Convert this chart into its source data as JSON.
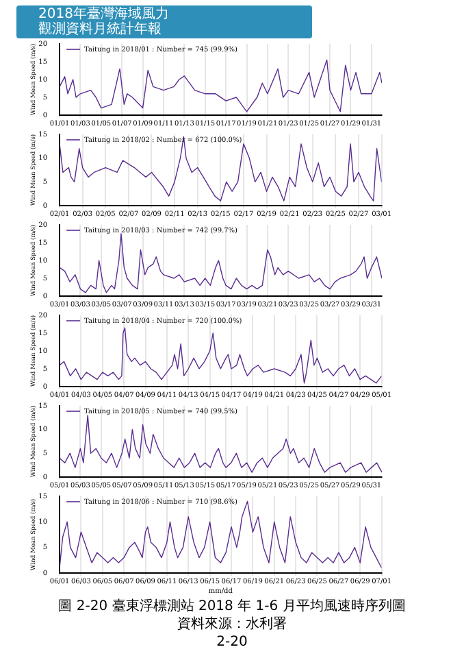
{
  "chart_data": [
    {
      "type": "line",
      "ylabel": "Wind Mean Speed (m/s)",
      "legend": "top left",
      "grid": "x",
      "annotations": [
        "2018年臺灣海域風力",
        "觀測資料月統計年報"
      ],
      "xlim": [
        "2018-01-01",
        "2018-02-01"
      ],
      "ylim": [
        0,
        20
      ],
      "yticks": [
        0,
        5,
        10,
        15,
        20
      ],
      "xticks": [
        {
          "value": "2018-01-01",
          "label": "01/01"
        },
        {
          "value": "2018-01-03",
          "label": "01/03"
        },
        {
          "value": "2018-01-05",
          "label": "01/05"
        },
        {
          "value": "2018-01-07",
          "label": "01/07"
        },
        {
          "value": "2018-01-09",
          "label": "01/09"
        },
        {
          "value": "2018-01-11",
          "label": "01/11"
        },
        {
          "value": "2018-01-13",
          "label": "01/13"
        },
        {
          "value": "2018-01-15",
          "label": "01/15"
        },
        {
          "value": "2018-01-17",
          "label": "01/17"
        },
        {
          "value": "2018-01-19",
          "label": "01/19"
        },
        {
          "value": "2018-01-21",
          "label": "01/21"
        },
        {
          "value": "2018-01-23",
          "label": "01/23"
        },
        {
          "value": "2018-01-25",
          "label": "01/25"
        },
        {
          "value": "2018-01-27",
          "label": "01/27"
        },
        {
          "value": "2018-01-29",
          "label": "01/29"
        },
        {
          "value": "2018-01-31",
          "label": "01/31"
        }
      ],
      "series": [
        {
          "name": "Taitung in 2018/01 : Number = 745 (99.9%)",
          "color": "#5a2d91",
          "x": [
            "2018-01-01",
            "2018-01-01T12:00",
            "2018-01-01T19:00",
            "2018-01-02T07:00",
            "2018-01-02T14:00",
            "2018-01-03",
            "2018-01-04",
            "2018-01-04T12:00",
            "2018-01-05",
            "2018-01-06",
            "2018-01-06T19:00",
            "2018-01-07T05:00",
            "2018-01-07T12:00",
            "2018-01-08",
            "2018-01-09",
            "2018-01-09T12:00",
            "2018-01-10",
            "2018-01-11",
            "2018-01-12",
            "2018-01-12T12:00",
            "2018-01-13",
            "2018-01-14",
            "2018-01-15",
            "2018-01-16",
            "2018-01-17",
            "2018-01-18",
            "2018-01-18T12:00",
            "2018-01-19",
            "2018-01-20",
            "2018-01-20T12:00",
            "2018-01-21",
            "2018-01-22",
            "2018-01-22T12:00",
            "2018-01-23",
            "2018-01-24",
            "2018-01-25",
            "2018-01-25T12:00",
            "2018-01-26T17:00",
            "2018-01-27",
            "2018-01-27T12:00",
            "2018-01-28",
            "2018-01-28T12:00",
            "2018-01-29",
            "2018-01-29T12:00",
            "2018-01-30",
            "2018-01-31",
            "2018-01-31T19:00",
            "2018-02-01"
          ],
          "values": [
            8,
            10.8,
            6,
            10,
            5,
            6,
            7,
            5,
            2,
            3,
            13,
            3,
            6,
            5,
            2,
            12.6,
            8,
            7,
            8,
            10,
            11,
            7,
            6,
            6,
            4,
            5,
            3,
            1,
            5,
            9,
            6,
            13,
            5,
            7,
            6,
            12,
            5,
            15.5,
            7,
            4,
            1,
            14,
            7,
            12,
            6,
            6,
            12,
            9
          ]
        }
      ]
    },
    {
      "type": "line",
      "ylabel": "Wind Mean Speed (m/s)",
      "legend": "top left",
      "grid": "x",
      "xlim": [
        "2018-02-01",
        "2018-03-01"
      ],
      "ylim": [
        0,
        15
      ],
      "yticks": [
        0,
        5,
        10,
        15
      ],
      "xticks": [
        {
          "value": "2018-02-01",
          "label": "02/01"
        },
        {
          "value": "2018-02-03",
          "label": "02/03"
        },
        {
          "value": "2018-02-05",
          "label": "02/05"
        },
        {
          "value": "2018-02-07",
          "label": "02/07"
        },
        {
          "value": "2018-02-09",
          "label": "02/09"
        },
        {
          "value": "2018-02-11",
          "label": "02/11"
        },
        {
          "value": "2018-02-13",
          "label": "02/13"
        },
        {
          "value": "2018-02-15",
          "label": "02/15"
        },
        {
          "value": "2018-02-17",
          "label": "02/17"
        },
        {
          "value": "2018-02-19",
          "label": "02/19"
        },
        {
          "value": "2018-02-21",
          "label": "02/21"
        },
        {
          "value": "2018-02-23",
          "label": "02/23"
        },
        {
          "value": "2018-02-25",
          "label": "02/25"
        },
        {
          "value": "2018-02-27",
          "label": "02/27"
        },
        {
          "value": "2018-03-01",
          "label": "03/01"
        }
      ],
      "series": [
        {
          "name": "Taitung in 2018/02 : Number = 672 (100.0%)",
          "color": "#5a2d91",
          "x": [
            "2018-02-01",
            "2018-02-01T07:00",
            "2018-02-01T19:00",
            "2018-02-02",
            "2018-02-02T07:00",
            "2018-02-02T17:00",
            "2018-02-03",
            "2018-02-03T12:00",
            "2018-02-04",
            "2018-02-05",
            "2018-02-06",
            "2018-02-06T12:00",
            "2018-02-07T12:00",
            "2018-02-08T12:00",
            "2018-02-09",
            "2018-02-10",
            "2018-02-10T12:00",
            "2018-02-11",
            "2018-02-11T12:00",
            "2018-02-11T19:00",
            "2018-02-12",
            "2018-02-12T12:00",
            "2018-02-13",
            "2018-02-13T12:00",
            "2018-02-14",
            "2018-02-14T12:00",
            "2018-02-15",
            "2018-02-15T12:00",
            "2018-02-16",
            "2018-02-16T12:00",
            "2018-02-17",
            "2018-02-17T12:00",
            "2018-02-18",
            "2018-02-18T12:00",
            "2018-02-19",
            "2018-02-19T12:00",
            "2018-02-20",
            "2018-02-20T12:00",
            "2018-02-21",
            "2018-02-21T12:00",
            "2018-02-22",
            "2018-02-22T12:00",
            "2018-02-23",
            "2018-02-23T12:00",
            "2018-02-24",
            "2018-02-24T12:00",
            "2018-02-25",
            "2018-02-25T12:00",
            "2018-02-26",
            "2018-02-26T07:00",
            "2018-02-26T14:00",
            "2018-02-27",
            "2018-02-27T12:00",
            "2018-02-28",
            "2018-02-28T07:00",
            "2018-02-28T14:00",
            "2018-03-01"
          ],
          "values": [
            13,
            7,
            8,
            6,
            5,
            12,
            8,
            6,
            7,
            8,
            7,
            9.5,
            8,
            6,
            7,
            4,
            2,
            5,
            10,
            14.5,
            10,
            7,
            8,
            6,
            4,
            2,
            1,
            5,
            3,
            5,
            13,
            10,
            5,
            7,
            3,
            6,
            4,
            1,
            6,
            4,
            13,
            8,
            5,
            9,
            4,
            6,
            3,
            2,
            4,
            13,
            5,
            7,
            4,
            2,
            1,
            12,
            5
          ]
        }
      ]
    },
    {
      "type": "line",
      "ylabel": "Wind Mean Speed (m/s)",
      "legend": "top left",
      "grid": "x",
      "xlim": [
        "2018-03-01",
        "2018-04-01"
      ],
      "ylim": [
        0,
        20
      ],
      "yticks": [
        0,
        5,
        10,
        15,
        20
      ],
      "xticks": [
        {
          "value": "2018-03-01",
          "label": "03/01"
        },
        {
          "value": "2018-03-03",
          "label": "03/03"
        },
        {
          "value": "2018-03-05",
          "label": "03/05"
        },
        {
          "value": "2018-03-07",
          "label": "03/07"
        },
        {
          "value": "2018-03-09",
          "label": "03/09"
        },
        {
          "value": "2018-03-11",
          "label": "03/11"
        },
        {
          "value": "2018-03-13",
          "label": "03/13"
        },
        {
          "value": "2018-03-15",
          "label": "03/15"
        },
        {
          "value": "2018-03-17",
          "label": "03/17"
        },
        {
          "value": "2018-03-19",
          "label": "03/19"
        },
        {
          "value": "2018-03-21",
          "label": "03/21"
        },
        {
          "value": "2018-03-23",
          "label": "03/23"
        },
        {
          "value": "2018-03-25",
          "label": "03/25"
        },
        {
          "value": "2018-03-27",
          "label": "03/27"
        },
        {
          "value": "2018-03-29",
          "label": "03/29"
        },
        {
          "value": "2018-03-31",
          "label": "03/31"
        }
      ],
      "series": [
        {
          "name": "Taitung in 2018/03 : Number = 742 (99.7%)",
          "color": "#5a2d91",
          "x": [
            "2018-03-01",
            "2018-03-01T12:00",
            "2018-03-02",
            "2018-03-02T12:00",
            "2018-03-03",
            "2018-03-03T12:00",
            "2018-03-04",
            "2018-03-04T12:00",
            "2018-03-04T19:00",
            "2018-03-05T05:00",
            "2018-03-05T12:00",
            "2018-03-06",
            "2018-03-06T07:00",
            "2018-03-06T17:00",
            "2018-03-06T22:00",
            "2018-03-07T05:00",
            "2018-03-07T12:00",
            "2018-03-08",
            "2018-03-08T12:00",
            "2018-03-08T19:00",
            "2018-03-09T05:00",
            "2018-03-09T12:00",
            "2018-03-10",
            "2018-03-10T07:00",
            "2018-03-10T17:00",
            "2018-03-11",
            "2018-03-12",
            "2018-03-12T12:00",
            "2018-03-13",
            "2018-03-14",
            "2018-03-14T12:00",
            "2018-03-15",
            "2018-03-15T12:00",
            "2018-03-16",
            "2018-03-16T07:00",
            "2018-03-16T17:00",
            "2018-03-17",
            "2018-03-17T12:00",
            "2018-03-18",
            "2018-03-18T12:00",
            "2018-03-19",
            "2018-03-19T12:00",
            "2018-03-20",
            "2018-03-20T12:00",
            "2018-03-21",
            "2018-03-21T07:00",
            "2018-03-21T17:00",
            "2018-03-22",
            "2018-03-22T12:00",
            "2018-03-23",
            "2018-03-24",
            "2018-03-25",
            "2018-03-25T12:00",
            "2018-03-26",
            "2018-03-26T12:00",
            "2018-03-27",
            "2018-03-27T12:00",
            "2018-03-28",
            "2018-03-29",
            "2018-03-29T12:00",
            "2018-03-30",
            "2018-03-30T07:00",
            "2018-03-30T14:00",
            "2018-03-31",
            "2018-03-31T12:00",
            "2018-04-01"
          ],
          "values": [
            8,
            7,
            4,
            6,
            2,
            1,
            3,
            2,
            10,
            3,
            1,
            3,
            2,
            10,
            17.5,
            8,
            5,
            3,
            2,
            13,
            6,
            8,
            9,
            11,
            7,
            6,
            5,
            6,
            4,
            5,
            3,
            5,
            3,
            8,
            10,
            5,
            3,
            2,
            5,
            3,
            2,
            3,
            2,
            3,
            13,
            11,
            6,
            8,
            6,
            7,
            5,
            6,
            4,
            5,
            3,
            2,
            4,
            5,
            6,
            7,
            9,
            11,
            5,
            8,
            11,
            5
          ]
        }
      ]
    },
    {
      "type": "line",
      "ylabel": "Wind Mean Speed (m/s)",
      "legend": "top left",
      "grid": "x",
      "xlim": [
        "2018-04-01",
        "2018-05-01"
      ],
      "ylim": [
        0,
        20
      ],
      "yticks": [
        0,
        5,
        10,
        15,
        20
      ],
      "xticks": [
        {
          "value": "2018-04-01",
          "label": "04/01"
        },
        {
          "value": "2018-04-03",
          "label": "04/03"
        },
        {
          "value": "2018-04-05",
          "label": "04/05"
        },
        {
          "value": "2018-04-07",
          "label": "04/07"
        },
        {
          "value": "2018-04-09",
          "label": "04/09"
        },
        {
          "value": "2018-04-11",
          "label": "04/11"
        },
        {
          "value": "2018-04-13",
          "label": "04/13"
        },
        {
          "value": "2018-04-15",
          "label": "04/15"
        },
        {
          "value": "2018-04-17",
          "label": "04/17"
        },
        {
          "value": "2018-04-19",
          "label": "04/19"
        },
        {
          "value": "2018-04-21",
          "label": "04/21"
        },
        {
          "value": "2018-04-23",
          "label": "04/23"
        },
        {
          "value": "2018-04-25",
          "label": "04/25"
        },
        {
          "value": "2018-04-27",
          "label": "04/27"
        },
        {
          "value": "2018-04-29",
          "label": "04/29"
        },
        {
          "value": "2018-05-01",
          "label": "05/01"
        }
      ],
      "series": [
        {
          "name": "Taitung in 2018/04 : Number = 720 (100.0%)",
          "color": "#5a2d91",
          "x": [
            "2018-04-01",
            "2018-04-01T10:00",
            "2018-04-02",
            "2018-04-02T12:00",
            "2018-04-03",
            "2018-04-03T12:00",
            "2018-04-04",
            "2018-04-04T12:00",
            "2018-04-05",
            "2018-04-05T12:00",
            "2018-04-06",
            "2018-04-06T12:00",
            "2018-04-06T19:00",
            "2018-04-06T22:00",
            "2018-04-07T02:00",
            "2018-04-07T07:00",
            "2018-04-07T17:00",
            "2018-04-08",
            "2018-04-08T12:00",
            "2018-04-09",
            "2018-04-09T12:00",
            "2018-04-10",
            "2018-04-10T12:00",
            "2018-04-11",
            "2018-04-11T12:00",
            "2018-04-11T17:00",
            "2018-04-12",
            "2018-04-12T07:00",
            "2018-04-12T14:00",
            "2018-04-13",
            "2018-04-13T12:00",
            "2018-04-14",
            "2018-04-14T12:00",
            "2018-04-15",
            "2018-04-15T07:00",
            "2018-04-15T14:00",
            "2018-04-16",
            "2018-04-16T12:00",
            "2018-04-16T17:00",
            "2018-04-17",
            "2018-04-17T12:00",
            "2018-04-17T19:00",
            "2018-04-18T05:00",
            "2018-04-18T12:00",
            "2018-04-19",
            "2018-04-19T12:00",
            "2018-04-20",
            "2018-04-21",
            "2018-04-22",
            "2018-04-22T12:00",
            "2018-04-23",
            "2018-04-23T12:00",
            "2018-04-23T19:00",
            "2018-04-24",
            "2018-04-24T10:00",
            "2018-04-24T17:00",
            "2018-04-25",
            "2018-04-25T12:00",
            "2018-04-26",
            "2018-04-26T12:00",
            "2018-04-27",
            "2018-04-27T12:00",
            "2018-04-28",
            "2018-04-28T12:00",
            "2018-04-29",
            "2018-04-29T12:00",
            "2018-04-30",
            "2018-04-30T12:00",
            "2018-05-01"
          ],
          "values": [
            6,
            7,
            3,
            5,
            2,
            4,
            3,
            2,
            4,
            3,
            4,
            2,
            3,
            15,
            16.5,
            9,
            7,
            8,
            6,
            7,
            5,
            4,
            2,
            4,
            6,
            9,
            5,
            12,
            3,
            5,
            8,
            5,
            7,
            10,
            15,
            8,
            5,
            8,
            9,
            5,
            6,
            9,
            5,
            3,
            5,
            6,
            4,
            5,
            4,
            3,
            5,
            9,
            1,
            4,
            13,
            6,
            8,
            4,
            5,
            3,
            5,
            6,
            3,
            5,
            2,
            3,
            2,
            1,
            3
          ]
        }
      ]
    },
    {
      "type": "line",
      "ylabel": "Wind Mean Speed (m/s)",
      "legend": "top left",
      "grid": "x",
      "xlim": [
        "2018-05-01",
        "2018-06-01"
      ],
      "ylim": [
        0,
        15
      ],
      "yticks": [
        0,
        5,
        10,
        15
      ],
      "xticks": [
        {
          "value": "2018-05-01",
          "label": "05/01"
        },
        {
          "value": "2018-05-03",
          "label": "05/03"
        },
        {
          "value": "2018-05-05",
          "label": "05/05"
        },
        {
          "value": "2018-05-07",
          "label": "05/07"
        },
        {
          "value": "2018-05-09",
          "label": "05/09"
        },
        {
          "value": "2018-05-11",
          "label": "05/11"
        },
        {
          "value": "2018-05-13",
          "label": "05/13"
        },
        {
          "value": "2018-05-15",
          "label": "05/15"
        },
        {
          "value": "2018-05-17",
          "label": "05/17"
        },
        {
          "value": "2018-05-19",
          "label": "05/19"
        },
        {
          "value": "2018-05-21",
          "label": "05/21"
        },
        {
          "value": "2018-05-23",
          "label": "05/23"
        },
        {
          "value": "2018-05-25",
          "label": "05/25"
        },
        {
          "value": "2018-05-27",
          "label": "05/27"
        },
        {
          "value": "2018-05-29",
          "label": "05/29"
        },
        {
          "value": "2018-05-31",
          "label": "05/31"
        }
      ],
      "series": [
        {
          "name": "Taitung in 2018/05 : Number = 740 (99.5%)",
          "color": "#5a2d91",
          "x": [
            "2018-05-01",
            "2018-05-01T12:00",
            "2018-05-02",
            "2018-05-02T12:00",
            "2018-05-03",
            "2018-05-03T07:00",
            "2018-05-03T17:00",
            "2018-05-04",
            "2018-05-04T12:00",
            "2018-05-05",
            "2018-05-05T12:00",
            "2018-05-06",
            "2018-05-06T12:00",
            "2018-05-07",
            "2018-05-07T07:00",
            "2018-05-07T17:00",
            "2018-05-08",
            "2018-05-08T07:00",
            "2018-05-08T17:00",
            "2018-05-09",
            "2018-05-09T07:00",
            "2018-05-09T17:00",
            "2018-05-10",
            "2018-05-10T12:00",
            "2018-05-11",
            "2018-05-11T12:00",
            "2018-05-12",
            "2018-05-12T12:00",
            "2018-05-13",
            "2018-05-13T12:00",
            "2018-05-14",
            "2018-05-14T12:00",
            "2018-05-15",
            "2018-05-15T12:00",
            "2018-05-16",
            "2018-05-16T07:00",
            "2018-05-16T17:00",
            "2018-05-17",
            "2018-05-17T12:00",
            "2018-05-18",
            "2018-05-18T12:00",
            "2018-05-19",
            "2018-05-19T12:00",
            "2018-05-20",
            "2018-05-20T12:00",
            "2018-05-21",
            "2018-05-21T12:00",
            "2018-05-22",
            "2018-05-22T12:00",
            "2018-05-22T19:00",
            "2018-05-23T05:00",
            "2018-05-23T12:00",
            "2018-05-24",
            "2018-05-24T12:00",
            "2018-05-25",
            "2018-05-25T12:00",
            "2018-05-26",
            "2018-05-26T12:00",
            "2018-05-27",
            "2018-05-28",
            "2018-05-28T12:00",
            "2018-05-29",
            "2018-05-30",
            "2018-05-30T12:00",
            "2018-05-31",
            "2018-05-31T12:00",
            "2018-06-01"
          ],
          "values": [
            4,
            3,
            5,
            2,
            6,
            3,
            13,
            5,
            6,
            4,
            3,
            5,
            2,
            5,
            8,
            4,
            10,
            6,
            4,
            11,
            7,
            5,
            9,
            6,
            4,
            3,
            2,
            4,
            2,
            3,
            5,
            2,
            3,
            2,
            5,
            6,
            3,
            2,
            3,
            5,
            2,
            3,
            1,
            3,
            4,
            2,
            4,
            5,
            6,
            8,
            5,
            6,
            3,
            4,
            2,
            6,
            3,
            1,
            2,
            3,
            1,
            2,
            3,
            1,
            2,
            3,
            1
          ]
        }
      ]
    },
    {
      "type": "line",
      "ylabel": "Wind Mean Speed (m/s)",
      "xlabel": "mm/dd",
      "legend": "top left",
      "grid": "x",
      "annotations": [
        "圖 2-20 臺東浮標測站 2018 年 1-6 月平均風速時序列圖",
        "資料來源：水利署",
        "2-20"
      ],
      "xlim": [
        "2018-06-01",
        "2018-07-01"
      ],
      "ylim": [
        0,
        15
      ],
      "yticks": [
        0,
        5,
        10,
        15
      ],
      "xticks": [
        {
          "value": "2018-06-01",
          "label": "06/01"
        },
        {
          "value": "2018-06-03",
          "label": "06/03"
        },
        {
          "value": "2018-06-05",
          "label": "06/05"
        },
        {
          "value": "2018-06-07",
          "label": "06/07"
        },
        {
          "value": "2018-06-09",
          "label": "06/09"
        },
        {
          "value": "2018-06-11",
          "label": "06/11"
        },
        {
          "value": "2018-06-13",
          "label": "06/13"
        },
        {
          "value": "2018-06-15",
          "label": "06/15"
        },
        {
          "value": "2018-06-17",
          "label": "06/17"
        },
        {
          "value": "2018-06-19",
          "label": "06/19"
        },
        {
          "value": "2018-06-21",
          "label": "06/21"
        },
        {
          "value": "2018-06-23",
          "label": "06/23"
        },
        {
          "value": "2018-06-25",
          "label": "06/25"
        },
        {
          "value": "2018-06-27",
          "label": "06/27"
        },
        {
          "value": "2018-06-29",
          "label": "06/29"
        },
        {
          "value": "2018-07-01",
          "label": "07/01"
        }
      ],
      "series": [
        {
          "name": "Taitung in 2018/06 : Number = 710 (98.6%)",
          "color": "#5a2d91",
          "x": [
            "2018-06-01",
            "2018-06-01T07:00",
            "2018-06-01T17:00",
            "2018-06-02",
            "2018-06-02T12:00",
            "2018-06-03",
            "2018-06-03T12:00",
            "2018-06-04",
            "2018-06-04T12:00",
            "2018-06-05",
            "2018-06-05T12:00",
            "2018-06-06",
            "2018-06-06T12:00",
            "2018-06-07",
            "2018-06-07T12:00",
            "2018-06-08",
            "2018-06-08T12:00",
            "2018-06-08T17:00",
            "2018-06-09",
            "2018-06-09T05:00",
            "2018-06-09T12:00",
            "2018-06-10",
            "2018-06-10T12:00",
            "2018-06-11",
            "2018-06-11T07:00",
            "2018-06-11T17:00",
            "2018-06-12",
            "2018-06-12T12:00",
            "2018-06-13",
            "2018-06-13T12:00",
            "2018-06-14",
            "2018-06-14T12:00",
            "2018-06-15",
            "2018-06-15T12:00",
            "2018-06-16",
            "2018-06-16T12:00",
            "2018-06-17",
            "2018-06-17T12:00",
            "2018-06-17T19:00",
            "2018-06-18",
            "2018-06-18T12:00",
            "2018-06-19",
            "2018-06-19T12:00",
            "2018-06-20",
            "2018-06-20T12:00",
            "2018-06-21",
            "2018-06-21T12:00",
            "2018-06-22",
            "2018-06-22T12:00",
            "2018-06-23",
            "2018-06-23T12:00",
            "2018-06-24",
            "2018-06-24T12:00",
            "2018-06-25",
            "2018-06-25T12:00",
            "2018-06-26",
            "2018-06-26T12:00",
            "2018-06-27",
            "2018-06-27T12:00",
            "2018-06-28",
            "2018-06-28T12:00",
            "2018-06-29",
            "2018-06-29T12:00",
            "2018-06-30",
            "2018-06-30T12:00",
            "2018-07-01"
          ],
          "values": [
            1,
            7,
            10,
            5,
            3,
            8,
            5,
            2,
            4,
            3,
            2,
            3,
            2,
            3,
            5,
            6,
            4,
            3,
            8,
            9,
            6,
            5,
            3,
            6,
            10,
            5,
            3,
            5,
            11,
            6,
            3,
            5,
            10,
            3,
            2,
            4,
            9,
            5,
            8,
            11,
            14,
            8,
            11,
            5,
            2,
            10,
            5,
            2,
            11,
            6,
            3,
            2,
            4,
            3,
            2,
            3,
            2,
            4,
            2,
            3,
            5,
            2,
            9,
            5,
            3,
            1
          ]
        }
      ]
    }
  ]
}
